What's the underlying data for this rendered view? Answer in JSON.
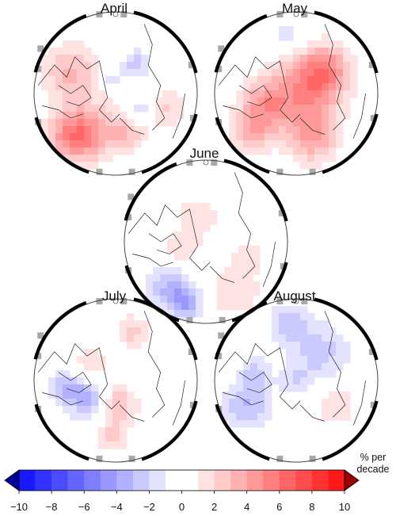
{
  "figure": {
    "panels": [
      {
        "id": "april",
        "title": "April"
      },
      {
        "id": "may",
        "title": "May"
      },
      {
        "id": "june",
        "title": "June"
      },
      {
        "id": "july",
        "title": "July"
      },
      {
        "id": "august",
        "title": "August"
      }
    ]
  },
  "colorbar": {
    "unit_line1": "% per",
    "unit_line2": "decade",
    "min": -10,
    "max": 10,
    "step": 1,
    "ticks": [
      "−10",
      "−8",
      "−6",
      "−4",
      "−2",
      "0",
      "2",
      "4",
      "6",
      "8",
      "10"
    ],
    "neg_color": "#0000ff",
    "pos_color": "#ff0000",
    "neutral_color": "#ffffff",
    "extend": "both"
  },
  "colors": {
    "land_outline": "#222222",
    "frame": "#000000",
    "missing": "#a8a8a8"
  }
}
